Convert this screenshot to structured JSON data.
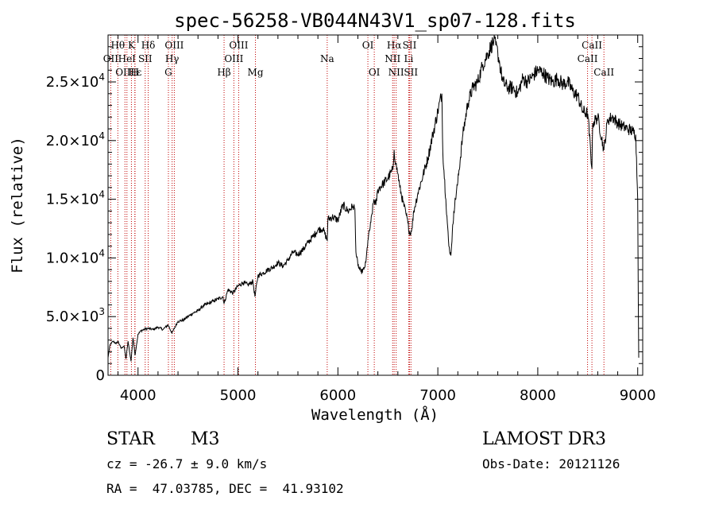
{
  "chart_data": {
    "type": "line",
    "title": "spec-56258-VB044N43V1_sp07-128.fits",
    "xlabel": "Wavelength (Å)",
    "ylabel": "Flux (relative)",
    "xlim": [
      3700,
      9050
    ],
    "ylim": [
      0,
      29000
    ],
    "xticks": [
      4000,
      5000,
      6000,
      7000,
      8000,
      9000
    ],
    "yticks": [
      {
        "value": 0,
        "mant": "0",
        "exp": ""
      },
      {
        "value": 5000,
        "mant": "5.0×10",
        "exp": "3"
      },
      {
        "value": 10000,
        "mant": "1.0×10",
        "exp": "4"
      },
      {
        "value": 15000,
        "mant": "1.5×10",
        "exp": "4"
      },
      {
        "value": 20000,
        "mant": "2.0×10",
        "exp": "4"
      },
      {
        "value": 25000,
        "mant": "2.5×10",
        "exp": "4"
      }
    ],
    "series": [
      {
        "name": "flux",
        "points": [
          [
            3700,
            1500
          ],
          [
            3720,
            2600
          ],
          [
            3750,
            2900
          ],
          [
            3780,
            2700
          ],
          [
            3800,
            2900
          ],
          [
            3830,
            2300
          ],
          [
            3860,
            2500
          ],
          [
            3880,
            1400
          ],
          [
            3900,
            2900
          ],
          [
            3930,
            1200
          ],
          [
            3950,
            3200
          ],
          [
            3970,
            1700
          ],
          [
            4000,
            3500
          ],
          [
            4030,
            3800
          ],
          [
            4060,
            3900
          ],
          [
            4100,
            4000
          ],
          [
            4150,
            3900
          ],
          [
            4200,
            4100
          ],
          [
            4250,
            3900
          ],
          [
            4300,
            4300
          ],
          [
            4340,
            3600
          ],
          [
            4400,
            4600
          ],
          [
            4450,
            4700
          ],
          [
            4500,
            5000
          ],
          [
            4550,
            5300
          ],
          [
            4600,
            5500
          ],
          [
            4650,
            5900
          ],
          [
            4700,
            6100
          ],
          [
            4750,
            6300
          ],
          [
            4800,
            6500
          ],
          [
            4850,
            6700
          ],
          [
            4861,
            6100
          ],
          [
            4900,
            7300
          ],
          [
            4950,
            7000
          ],
          [
            5000,
            7600
          ],
          [
            5050,
            7900
          ],
          [
            5100,
            7700
          ],
          [
            5150,
            8000
          ],
          [
            5170,
            6700
          ],
          [
            5200,
            8500
          ],
          [
            5250,
            8700
          ],
          [
            5300,
            9000
          ],
          [
            5350,
            9200
          ],
          [
            5400,
            9600
          ],
          [
            5450,
            9300
          ],
          [
            5500,
            9800
          ],
          [
            5550,
            10500
          ],
          [
            5600,
            10300
          ],
          [
            5650,
            10700
          ],
          [
            5700,
            11300
          ],
          [
            5750,
            11800
          ],
          [
            5800,
            12400
          ],
          [
            5850,
            12500
          ],
          [
            5893,
            11500
          ],
          [
            5900,
            13300
          ],
          [
            5950,
            13500
          ],
          [
            6000,
            13200
          ],
          [
            6050,
            14500
          ],
          [
            6100,
            14000
          ],
          [
            6150,
            14400
          ],
          [
            6170,
            14200
          ],
          [
            6180,
            10500
          ],
          [
            6200,
            9400
          ],
          [
            6230,
            8800
          ],
          [
            6260,
            9000
          ],
          [
            6280,
            9600
          ],
          [
            6300,
            11500
          ],
          [
            6330,
            13000
          ],
          [
            6360,
            15000
          ],
          [
            6380,
            14500
          ],
          [
            6400,
            15800
          ],
          [
            6450,
            16300
          ],
          [
            6500,
            16800
          ],
          [
            6550,
            17500
          ],
          [
            6563,
            19200
          ],
          [
            6580,
            18000
          ],
          [
            6600,
            17200
          ],
          [
            6620,
            16000
          ],
          [
            6650,
            14800
          ],
          [
            6680,
            13800
          ],
          [
            6700,
            13000
          ],
          [
            6720,
            12000
          ],
          [
            6740,
            12500
          ],
          [
            6760,
            14000
          ],
          [
            6800,
            15500
          ],
          [
            6850,
            17000
          ],
          [
            6900,
            18500
          ],
          [
            6950,
            20500
          ],
          [
            7000,
            22500
          ],
          [
            7040,
            24000
          ],
          [
            7050,
            19000
          ],
          [
            7080,
            15000
          ],
          [
            7110,
            11000
          ],
          [
            7130,
            10200
          ],
          [
            7160,
            14000
          ],
          [
            7200,
            16500
          ],
          [
            7250,
            20500
          ],
          [
            7300,
            23200
          ],
          [
            7350,
            24500
          ],
          [
            7400,
            25000
          ],
          [
            7450,
            26500
          ],
          [
            7500,
            27400
          ],
          [
            7530,
            28000
          ],
          [
            7560,
            28500
          ],
          [
            7600,
            27500
          ],
          [
            7620,
            26500
          ],
          [
            7650,
            25000
          ],
          [
            7700,
            24500
          ],
          [
            7750,
            24500
          ],
          [
            7800,
            24000
          ],
          [
            7850,
            25300
          ],
          [
            7900,
            25000
          ],
          [
            7950,
            25500
          ],
          [
            8000,
            26000
          ],
          [
            8050,
            25800
          ],
          [
            8100,
            25300
          ],
          [
            8150,
            25000
          ],
          [
            8200,
            25300
          ],
          [
            8250,
            24800
          ],
          [
            8300,
            25000
          ],
          [
            8350,
            24200
          ],
          [
            8400,
            23800
          ],
          [
            8450,
            22500
          ],
          [
            8500,
            22300
          ],
          [
            8542,
            17600
          ],
          [
            8550,
            21500
          ],
          [
            8600,
            22000
          ],
          [
            8662,
            19200
          ],
          [
            8700,
            21800
          ],
          [
            8750,
            22000
          ],
          [
            8800,
            21500
          ],
          [
            8850,
            21200
          ],
          [
            8900,
            21000
          ],
          [
            8950,
            20800
          ],
          [
            8980,
            20500
          ],
          [
            9000,
            15000
          ],
          [
            9010,
            1500
          ]
        ]
      }
    ],
    "lines": [
      {
        "label": "Hθ",
        "x": 3798,
        "row": 0
      },
      {
        "label": "OII",
        "x": 3727,
        "row": 1
      },
      {
        "label": "OIII",
        "x": 3869,
        "row": 2
      },
      {
        "label": "K",
        "x": 3934,
        "row": 0
      },
      {
        "label": "HeI",
        "x": 3889,
        "row": 1
      },
      {
        "label": "Hε",
        "x": 3970,
        "row": 2
      },
      {
        "label": "SII",
        "x": 4072,
        "row": 1
      },
      {
        "label": "Hδ",
        "x": 4102,
        "row": 0
      },
      {
        "label": "H",
        "x": 3968,
        "row": 2
      },
      {
        "label": "OIII",
        "x": 4363,
        "row": 0
      },
      {
        "label": "Hγ",
        "x": 4341,
        "row": 1
      },
      {
        "label": "G",
        "x": 4304,
        "row": 2
      },
      {
        "label": "Hβ",
        "x": 4861,
        "row": 2
      },
      {
        "label": "OIII",
        "x": 5007,
        "row": 0
      },
      {
        "label": "OIII",
        "x": 4959,
        "row": 1
      },
      {
        "label": "Mg",
        "x": 5175,
        "row": 2
      },
      {
        "label": "Na",
        "x": 5893,
        "row": 1
      },
      {
        "label": "OI",
        "x": 6300,
        "row": 0
      },
      {
        "label": "OI",
        "x": 6364,
        "row": 2
      },
      {
        "label": "Hα",
        "x": 6563,
        "row": 0
      },
      {
        "label": "NII",
        "x": 6548,
        "row": 1
      },
      {
        "label": "NII",
        "x": 6583,
        "row": 2
      },
      {
        "label": "SII",
        "x": 6717,
        "row": 0
      },
      {
        "label": "Li",
        "x": 6708,
        "row": 1
      },
      {
        "label": "SII",
        "x": 6731,
        "row": 2
      },
      {
        "label": "CaII",
        "x": 8542,
        "row": 0
      },
      {
        "label": "CaII",
        "x": 8498,
        "row": 1
      },
      {
        "label": "CaII",
        "x": 8662,
        "row": 2
      }
    ]
  },
  "info": {
    "class_label": "STAR",
    "subclass": "M3",
    "survey": "LAMOST DR3",
    "cz": "cz = -26.7 ± 9.0 km/s",
    "obs_date": "Obs-Date: 20121126",
    "radec": "RA =  47.03785, DEC =  41.93102"
  }
}
